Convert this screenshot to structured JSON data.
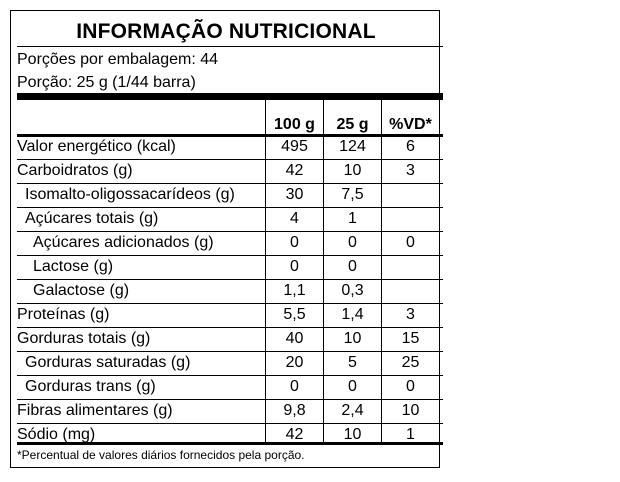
{
  "title": "INFORMAÇÃO NUTRICIONAL",
  "servings_per_package": "Porções por embalagem: 44",
  "portion": "Porção: 25 g (1/44 barra)",
  "columns": [
    "100 g",
    "25 g",
    "%VD*"
  ],
  "rows": [
    {
      "name": "Valor energético (kcal)",
      "indent": 0,
      "values": [
        "495",
        "124",
        "6"
      ]
    },
    {
      "name": "Carboidratos (g)",
      "indent": 0,
      "values": [
        "42",
        "10",
        "3"
      ]
    },
    {
      "name": "Isomalto-oligossacarídeos (g)",
      "indent": 1,
      "values": [
        "30",
        "7,5",
        ""
      ]
    },
    {
      "name": "Açúcares totais (g)",
      "indent": 1,
      "values": [
        "4",
        "1",
        ""
      ]
    },
    {
      "name": "Açúcares adicionados (g)",
      "indent": 2,
      "values": [
        "0",
        "0",
        "0"
      ]
    },
    {
      "name": "Lactose (g)",
      "indent": 2,
      "values": [
        "0",
        "0",
        ""
      ]
    },
    {
      "name": "Galactose (g)",
      "indent": 2,
      "values": [
        "1,1",
        "0,3",
        ""
      ]
    },
    {
      "name": "Proteínas (g)",
      "indent": 0,
      "values": [
        "5,5",
        "1,4",
        "3"
      ]
    },
    {
      "name": "Gorduras totais (g)",
      "indent": 0,
      "values": [
        "40",
        "10",
        "15"
      ]
    },
    {
      "name": "Gorduras saturadas (g)",
      "indent": 1,
      "values": [
        "20",
        "5",
        "25"
      ]
    },
    {
      "name": "Gorduras trans (g)",
      "indent": 1,
      "values": [
        "0",
        "0",
        "0"
      ]
    },
    {
      "name": "Fibras alimentares (g)",
      "indent": 0,
      "values": [
        "9,8",
        "2,4",
        "10"
      ]
    },
    {
      "name": "Sódio (mg)",
      "indent": 0,
      "values": [
        "42",
        "10",
        "1"
      ]
    }
  ],
  "footnote": "*Percentual de valores diários fornecidos pela porção."
}
